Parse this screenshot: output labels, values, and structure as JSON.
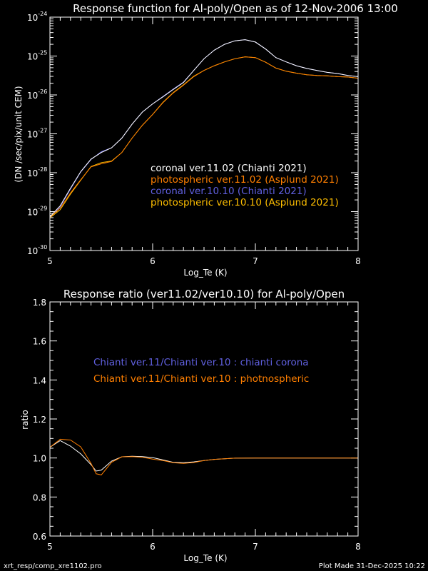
{
  "chart_data": [
    {
      "type": "line",
      "title": "Response function for Al-poly/Open as of 12-Nov-2006 13:00",
      "xlabel": "Log_Te (K)",
      "ylabel": "(DN /sec/pix/unit CEM)",
      "xlim": [
        5,
        8
      ],
      "ylim_log10": [
        -30,
        -24
      ],
      "yscale": "log",
      "x_ticks": [
        "5",
        "6",
        "7",
        "8"
      ],
      "y_tick_base": "10",
      "y_tick_exponents": [
        "-30",
        "-29",
        "-28",
        "-27",
        "-26",
        "-25",
        "-24"
      ],
      "legend_placement": "center-right",
      "x": [
        5.0,
        5.1,
        5.2,
        5.3,
        5.4,
        5.5,
        5.6,
        5.7,
        5.8,
        5.9,
        6.0,
        6.1,
        6.2,
        6.3,
        6.4,
        6.5,
        6.6,
        6.7,
        6.8,
        6.9,
        7.0,
        7.1,
        7.2,
        7.3,
        7.4,
        7.5,
        7.6,
        7.7,
        7.8,
        7.9,
        8.0
      ],
      "series": [
        {
          "name": "coronal ver.11.02 (Chianti 2021)",
          "color": "#ffffff",
          "log10_values": [
            -29.13,
            -28.85,
            -28.4,
            -27.97,
            -27.65,
            -27.48,
            -27.36,
            -27.11,
            -26.75,
            -26.44,
            -26.23,
            -26.05,
            -25.86,
            -25.68,
            -25.37,
            -25.07,
            -24.85,
            -24.7,
            -24.61,
            -24.58,
            -24.64,
            -24.82,
            -25.04,
            -25.15,
            -25.25,
            -25.32,
            -25.37,
            -25.42,
            -25.45,
            -25.5,
            -25.53
          ]
        },
        {
          "name": "photospheric ver.11.02 (Asplund 2021)",
          "color": "#ff7f00",
          "log10_values": [
            -29.14,
            -28.91,
            -28.52,
            -28.18,
            -27.85,
            -27.77,
            -27.71,
            -27.48,
            -27.11,
            -26.78,
            -26.5,
            -26.2,
            -25.95,
            -25.75,
            -25.53,
            -25.37,
            -25.25,
            -25.15,
            -25.07,
            -25.02,
            -25.04,
            -25.16,
            -25.31,
            -25.39,
            -25.44,
            -25.48,
            -25.5,
            -25.51,
            -25.53,
            -25.54,
            -25.57
          ]
        },
        {
          "name": "coronal ver.10.10 (Chianti 2021)",
          "color": "#6060e0",
          "log10_values": [
            -29.15,
            -28.88,
            -28.42,
            -27.98,
            -27.66,
            -27.46,
            -27.36,
            -27.11,
            -26.75,
            -26.44,
            -26.23,
            -26.04,
            -25.85,
            -25.67,
            -25.37,
            -25.07,
            -24.85,
            -24.7,
            -24.61,
            -24.58,
            -24.64,
            -24.82,
            -25.04,
            -25.15,
            -25.25,
            -25.32,
            -25.37,
            -25.42,
            -25.45,
            -25.5,
            -25.53
          ]
        },
        {
          "name": "photospheric ver.10.10 (Asplund 2021)",
          "color": "#ffbf00",
          "log10_values": [
            -29.16,
            -28.95,
            -28.55,
            -28.19,
            -27.84,
            -27.74,
            -27.7,
            -27.48,
            -27.11,
            -26.78,
            -26.5,
            -26.19,
            -25.94,
            -25.74,
            -25.52,
            -25.37,
            -25.25,
            -25.15,
            -25.07,
            -25.02,
            -25.04,
            -25.16,
            -25.31,
            -25.39,
            -25.44,
            -25.48,
            -25.5,
            -25.51,
            -25.53,
            -25.54,
            -25.57
          ]
        }
      ]
    },
    {
      "type": "line",
      "title": "Response ratio (ver11.02/ver10.10) for Al-poly/Open",
      "xlabel": "Log_Te (K)",
      "ylabel": "ratio",
      "xlim": [
        5,
        8
      ],
      "ylim": [
        0.6,
        1.8
      ],
      "x_ticks": [
        "5",
        "6",
        "7",
        "8"
      ],
      "y_ticks": [
        "0.6",
        "0.8",
        "1.0",
        "1.2",
        "1.4",
        "1.6",
        "1.8"
      ],
      "legend_placement": "upper-center",
      "x": [
        5.0,
        5.1,
        5.2,
        5.3,
        5.4,
        5.45,
        5.5,
        5.6,
        5.7,
        5.8,
        5.9,
        6.0,
        6.1,
        6.2,
        6.3,
        6.4,
        6.5,
        6.6,
        6.7,
        6.8,
        7.0,
        7.5,
        8.0
      ],
      "series": [
        {
          "name": "Chianti ver.11/Chianti ver.10 : chianti corona",
          "color": "#6060e0",
          "line_color": "#ffffff",
          "values": [
            1.055,
            1.089,
            1.061,
            1.021,
            0.966,
            0.933,
            0.938,
            0.984,
            1.006,
            1.009,
            1.007,
            1.002,
            0.99,
            0.978,
            0.976,
            0.98,
            0.987,
            0.993,
            0.996,
            0.999,
            1.0,
            1.0,
            1.0
          ]
        },
        {
          "name": "Chianti ver.11/Chianti ver.10 : photnospheric",
          "color": "#ff7f00",
          "line_color": "#ff7f00",
          "values": [
            1.055,
            1.096,
            1.092,
            1.057,
            0.972,
            0.919,
            0.913,
            0.978,
            1.006,
            1.007,
            1.004,
            0.994,
            0.987,
            0.976,
            0.972,
            0.977,
            0.987,
            0.993,
            0.996,
            0.999,
            1.0,
            1.0,
            1.0
          ]
        }
      ]
    }
  ],
  "footer": {
    "left": "xrt_resp/comp_xre1102.pro",
    "right": "Plot Made 31-Dec-2025 10:22"
  }
}
